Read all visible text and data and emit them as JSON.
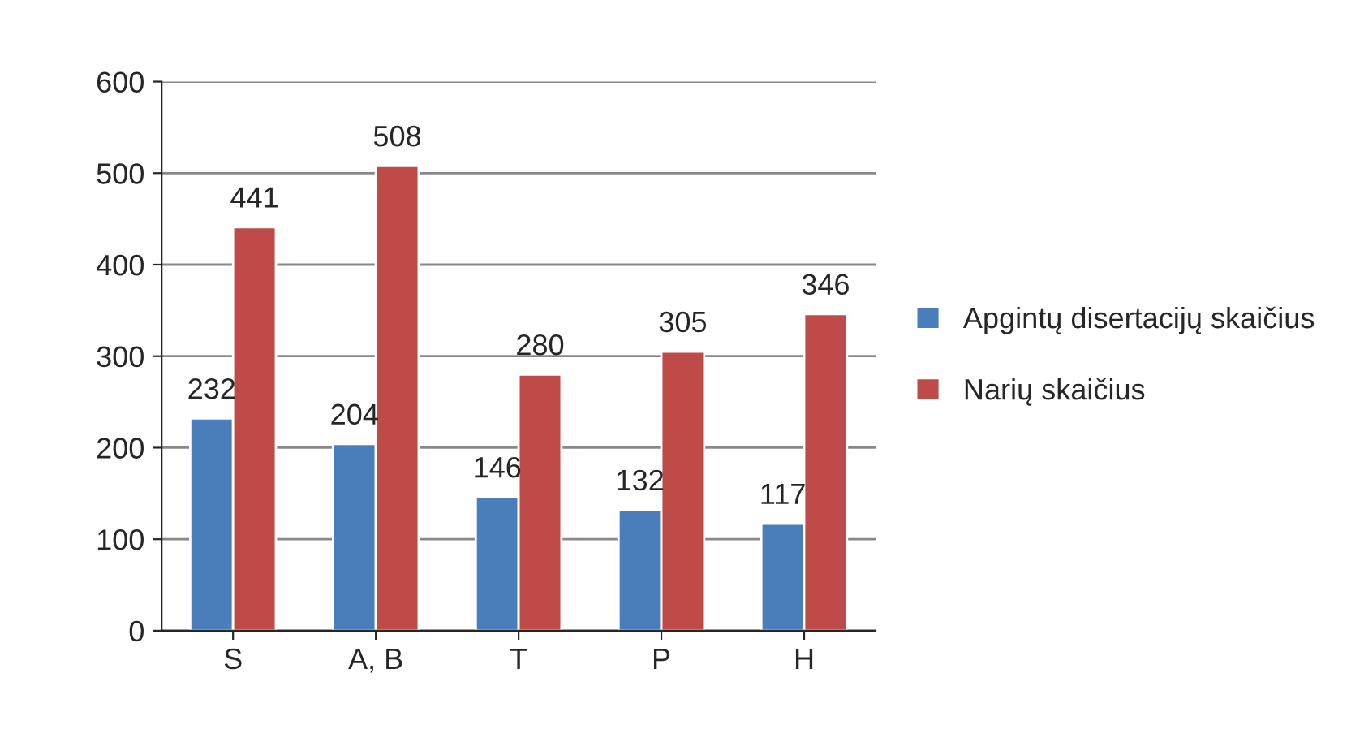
{
  "chart_data": {
    "type": "bar",
    "categories": [
      "S",
      "A, B",
      "T",
      "P",
      "H"
    ],
    "series": [
      {
        "name": "Apgintų disertacijų skaičius",
        "color": "#4a7ebb",
        "values": [
          232,
          204,
          146,
          132,
          117
        ]
      },
      {
        "name": "Narių skaičius",
        "color": "#be4b48",
        "values": [
          441,
          508,
          280,
          305,
          346
        ]
      }
    ],
    "ylim": [
      0,
      600
    ],
    "yticks": [
      0,
      100,
      200,
      300,
      400,
      500,
      600
    ],
    "grid": "y",
    "legend": "right",
    "data_labels": true
  }
}
